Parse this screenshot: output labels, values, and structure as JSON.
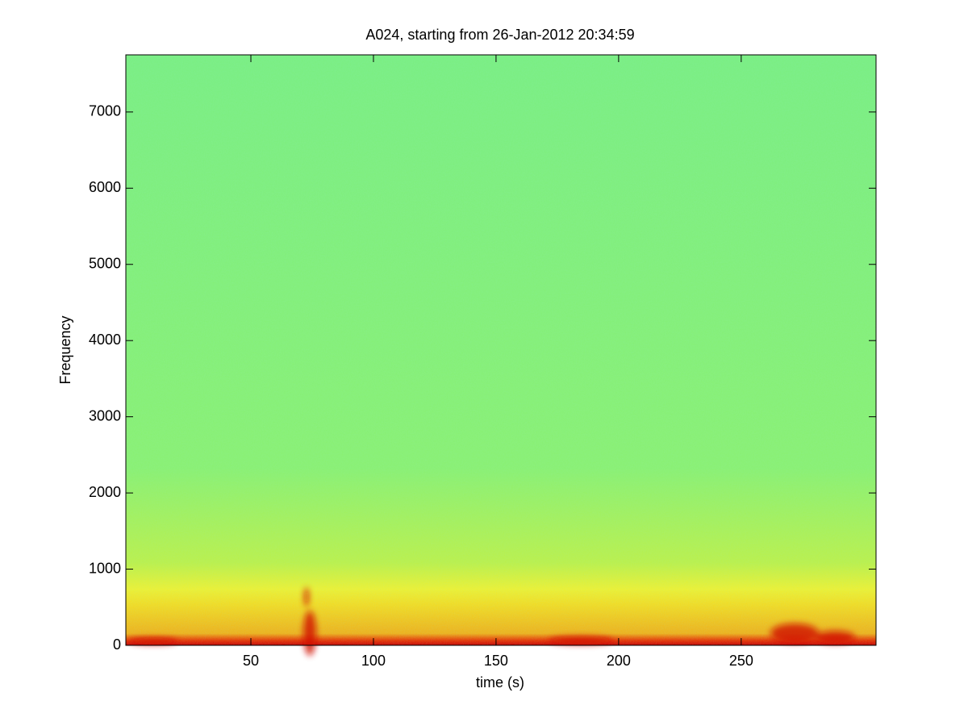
{
  "chart_data": {
    "type": "spectrogram",
    "title": "A024, starting from 26-Jan-2012 20:34:59",
    "xlabel": "time (s)",
    "ylabel": "Frequency",
    "xlim": [
      -1,
      305
    ],
    "xticks": [
      50,
      100,
      150,
      200,
      250
    ],
    "ylim": [
      0,
      7750
    ],
    "yticks": [
      0,
      1000,
      2000,
      3000,
      4000,
      5000,
      6000,
      7000
    ]
  }
}
